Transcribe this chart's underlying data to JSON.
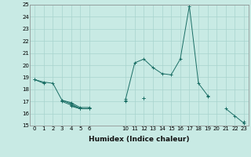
{
  "title": "",
  "xlabel": "Humidex (Indice chaleur)",
  "ylabel": "",
  "xlim": [
    -0.5,
    23.5
  ],
  "ylim": [
    15,
    25
  ],
  "yticks": [
    15,
    16,
    17,
    18,
    19,
    20,
    21,
    22,
    23,
    24,
    25
  ],
  "xticks": [
    0,
    1,
    2,
    3,
    4,
    5,
    6,
    10,
    11,
    12,
    13,
    14,
    15,
    16,
    17,
    18,
    19,
    20,
    21,
    22,
    23
  ],
  "bg_color": "#c8eae4",
  "line_color": "#1a6e65",
  "grid_color": "#a8d4ce",
  "curves": [
    [
      18.8,
      18.6,
      18.5,
      17.1,
      16.9,
      16.5,
      16.5,
      null,
      null,
      null,
      17.2,
      20.2,
      20.5,
      19.8,
      19.3,
      19.2,
      20.5,
      24.9,
      18.5,
      17.5,
      null,
      16.4,
      15.8,
      15.2
    ],
    [
      18.8,
      18.5,
      null,
      17.1,
      16.8,
      16.4,
      16.4,
      null,
      null,
      null,
      17.1,
      null,
      17.3,
      null,
      null,
      null,
      null,
      null,
      null,
      17.4,
      null,
      null,
      null,
      15.3
    ],
    [
      null,
      null,
      null,
      17.0,
      16.7,
      16.4,
      16.4,
      null,
      null,
      null,
      17.0,
      null,
      17.3,
      null,
      null,
      null,
      null,
      null,
      null,
      null,
      null,
      null,
      null,
      null
    ],
    [
      null,
      null,
      null,
      null,
      16.6,
      16.4,
      null,
      null,
      null,
      null,
      null,
      null,
      null,
      null,
      null,
      null,
      null,
      null,
      null,
      null,
      null,
      null,
      null,
      null
    ]
  ],
  "xlabel_fontsize": 6.5,
  "tick_fontsize": 5.0
}
